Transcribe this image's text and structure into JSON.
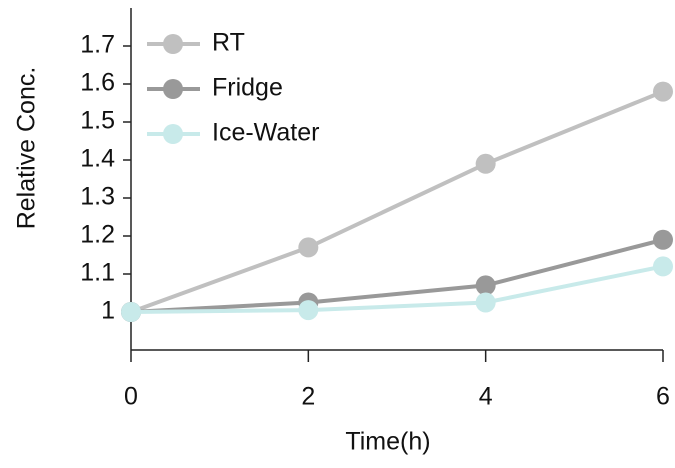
{
  "chart_data": {
    "type": "line",
    "x_label": "Time(h)",
    "y_label": "Relative Conc.",
    "x": [
      0,
      2,
      4,
      6
    ],
    "series": [
      {
        "name": "RT",
        "color": "#c0c0c0",
        "values": [
          1,
          1.17,
          1.39,
          1.58
        ]
      },
      {
        "name": "Fridge",
        "color": "#999999",
        "values": [
          1,
          1.025,
          1.07,
          1.19
        ]
      },
      {
        "name": "Ice-Water",
        "color": "#c8eaea",
        "values": [
          1,
          1.005,
          1.025,
          1.12
        ]
      }
    ],
    "xlim": [
      0,
      6
    ],
    "xticks": [
      0,
      2,
      4,
      6
    ],
    "ylim": [
      0.9,
      1.8
    ],
    "yticks": [
      1,
      1.1,
      1.2,
      1.3,
      1.4,
      1.5,
      1.6,
      1.7
    ],
    "grid": false,
    "legend": "upper left"
  }
}
